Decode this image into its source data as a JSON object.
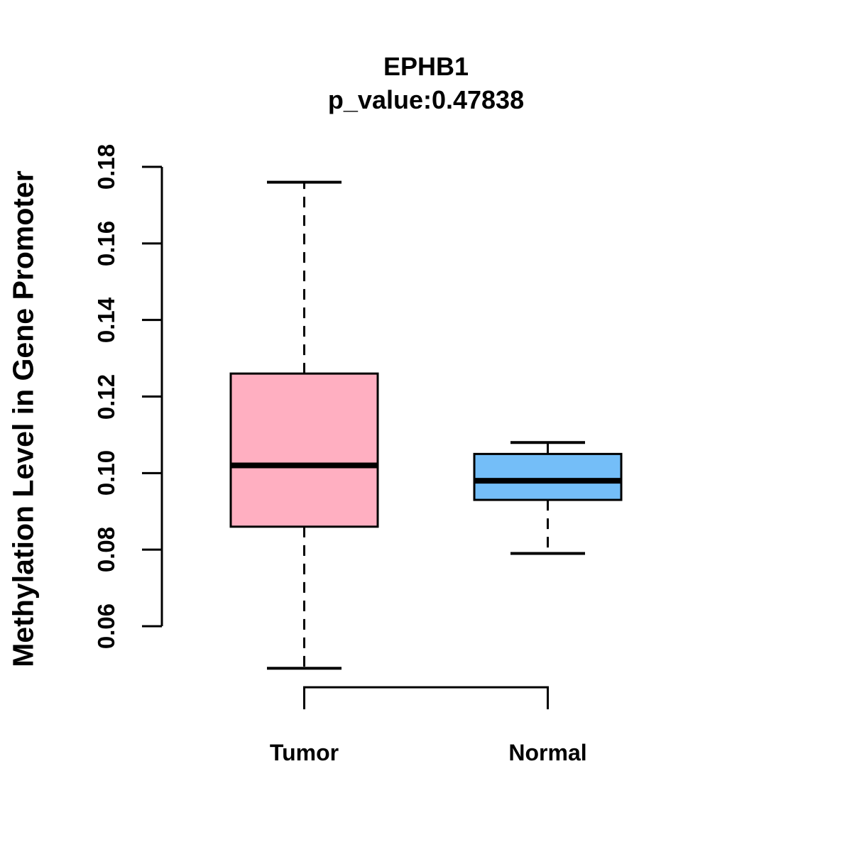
{
  "chart": {
    "title": "EPHB1",
    "subtitle": "p_value:0.47838",
    "ylabel": "Methylation Level in Gene Promoter",
    "colors": {
      "tumor_fill": "#FFAFC1",
      "normal_fill": "#74BEF8",
      "stroke": "#000000",
      "background": "#FFFFFF"
    }
  },
  "chart_data": {
    "type": "boxplot",
    "title": "EPHB1",
    "subtitle": "p_value:0.47838",
    "xlabel": "",
    "ylabel": "Methylation Level in Gene Promoter",
    "categories": [
      "Tumor",
      "Normal"
    ],
    "series": [
      {
        "name": "Tumor",
        "lower_whisker": 0.049,
        "q1": 0.086,
        "median": 0.102,
        "q3": 0.126,
        "upper_whisker": 0.176,
        "fill": "#FFAFC1"
      },
      {
        "name": "Normal",
        "lower_whisker": 0.079,
        "q1": 0.093,
        "median": 0.098,
        "q3": 0.105,
        "upper_whisker": 0.108,
        "fill": "#74BEF8"
      }
    ],
    "yticks": [
      0.06,
      0.08,
      0.1,
      0.12,
      0.14,
      0.16,
      0.18
    ],
    "ytick_labels": [
      "0.06",
      "0.08",
      "0.10",
      "0.12",
      "0.14",
      "0.16",
      "0.18"
    ],
    "ylim": [
      0.06,
      0.18
    ],
    "grid": false,
    "legend_position": "none"
  }
}
